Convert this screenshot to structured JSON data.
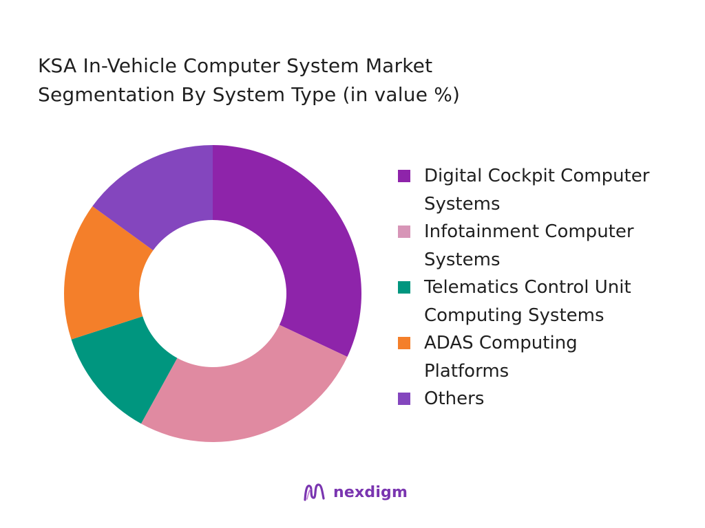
{
  "title_lines": [
    "KSA In-Vehicle Computer System Market",
    "Segmentation By System Type  (in value %)"
  ],
  "brand": {
    "name": "nexdigm",
    "accent": "#7a35b0"
  },
  "chart_data": {
    "type": "pie",
    "style": "donut",
    "title": "KSA In-Vehicle Computer System Market Segmentation By System Type  (in value %)",
    "legend_position": "right",
    "segments": [
      {
        "label": "Digital Cockpit Computer\nSystems",
        "value": 32,
        "color": "#8E24AA",
        "legend_color": "#8E24AA"
      },
      {
        "label": "Infotainment Computer\nSystems",
        "value": 26,
        "color": "#E08AA1",
        "legend_color": "#D795B7"
      },
      {
        "label": "Telematics Control Unit\nComputing Systems",
        "value": 12,
        "color": "#00967F",
        "legend_color": "#00967F"
      },
      {
        "label": "ADAS Computing\nPlatforms",
        "value": 15,
        "color": "#F47F2A",
        "legend_color": "#F47F2A"
      },
      {
        "label": "Others",
        "value": 15,
        "color": "#8446BE",
        "legend_color": "#8446BE"
      }
    ]
  }
}
